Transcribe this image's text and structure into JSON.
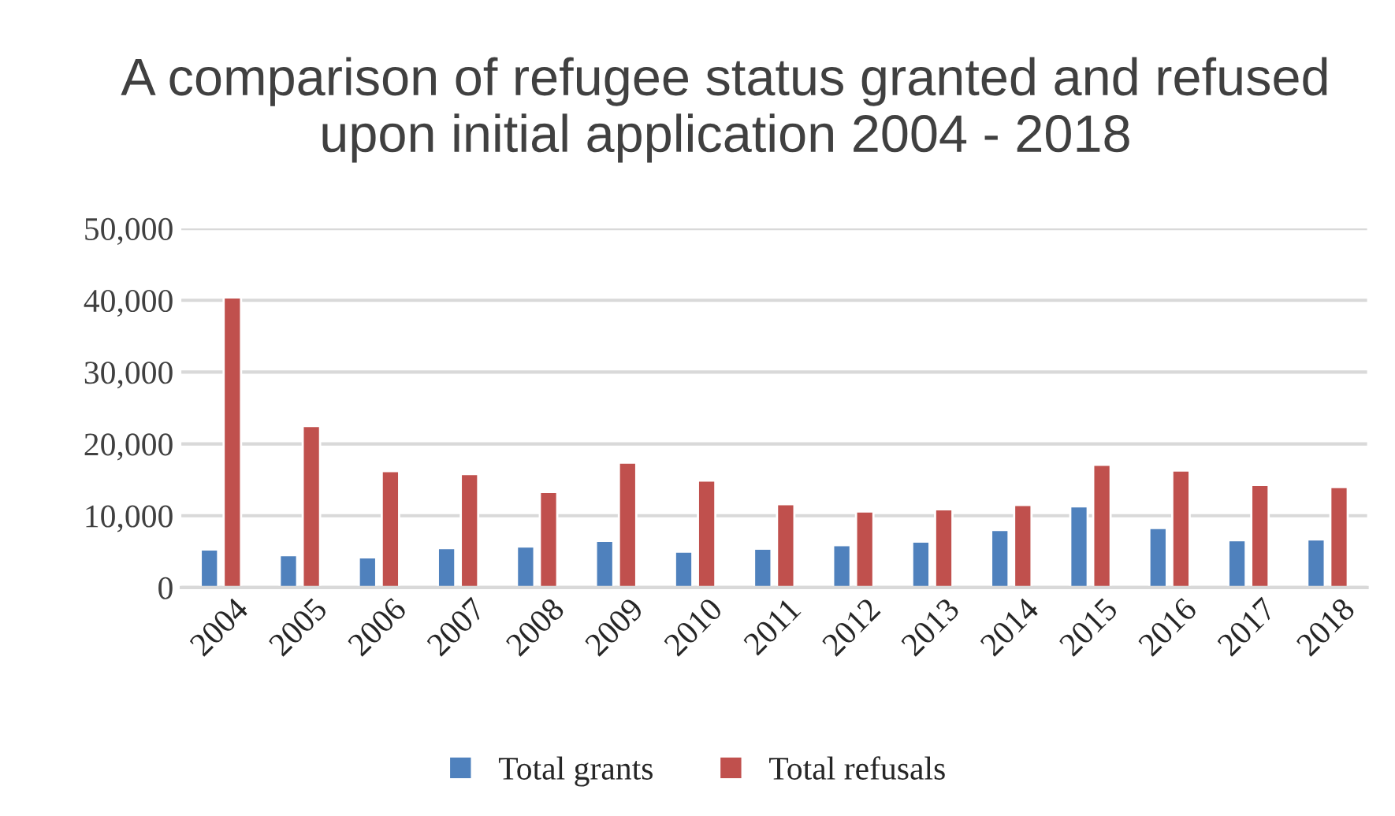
{
  "chart_data": {
    "type": "bar",
    "title": "A comparison of refugee status granted and refused upon initial application 2004 - 2018",
    "categories": [
      "2004",
      "2005",
      "2006",
      "2007",
      "2008",
      "2009",
      "2010",
      "2011",
      "2012",
      "2013",
      "2014",
      "2015",
      "2016",
      "2017",
      "2018"
    ],
    "series": [
      {
        "name": "Total grants",
        "color": "#4f81bd",
        "values": [
          5300,
          4500,
          4200,
          5500,
          5700,
          6500,
          5000,
          5400,
          5900,
          6400,
          8000,
          11300,
          8300,
          6600,
          6700
        ]
      },
      {
        "name": "Total refusals",
        "color": "#c0504d",
        "values": [
          40400,
          22500,
          16200,
          15800,
          13300,
          17400,
          14900,
          11600,
          10600,
          10900,
          11500,
          17100,
          16300,
          14300,
          14000
        ]
      }
    ],
    "ylim": [
      0,
      50000
    ],
    "yticks": [
      {
        "value": 0,
        "label": "0"
      },
      {
        "value": 10000,
        "label": "10,000"
      },
      {
        "value": 20000,
        "label": "20,000"
      },
      {
        "value": 30000,
        "label": "30,000"
      },
      {
        "value": 40000,
        "label": "40,000"
      },
      {
        "value": 50000,
        "label": "50,000"
      }
    ],
    "grid": "y",
    "legend": "bottom"
  }
}
